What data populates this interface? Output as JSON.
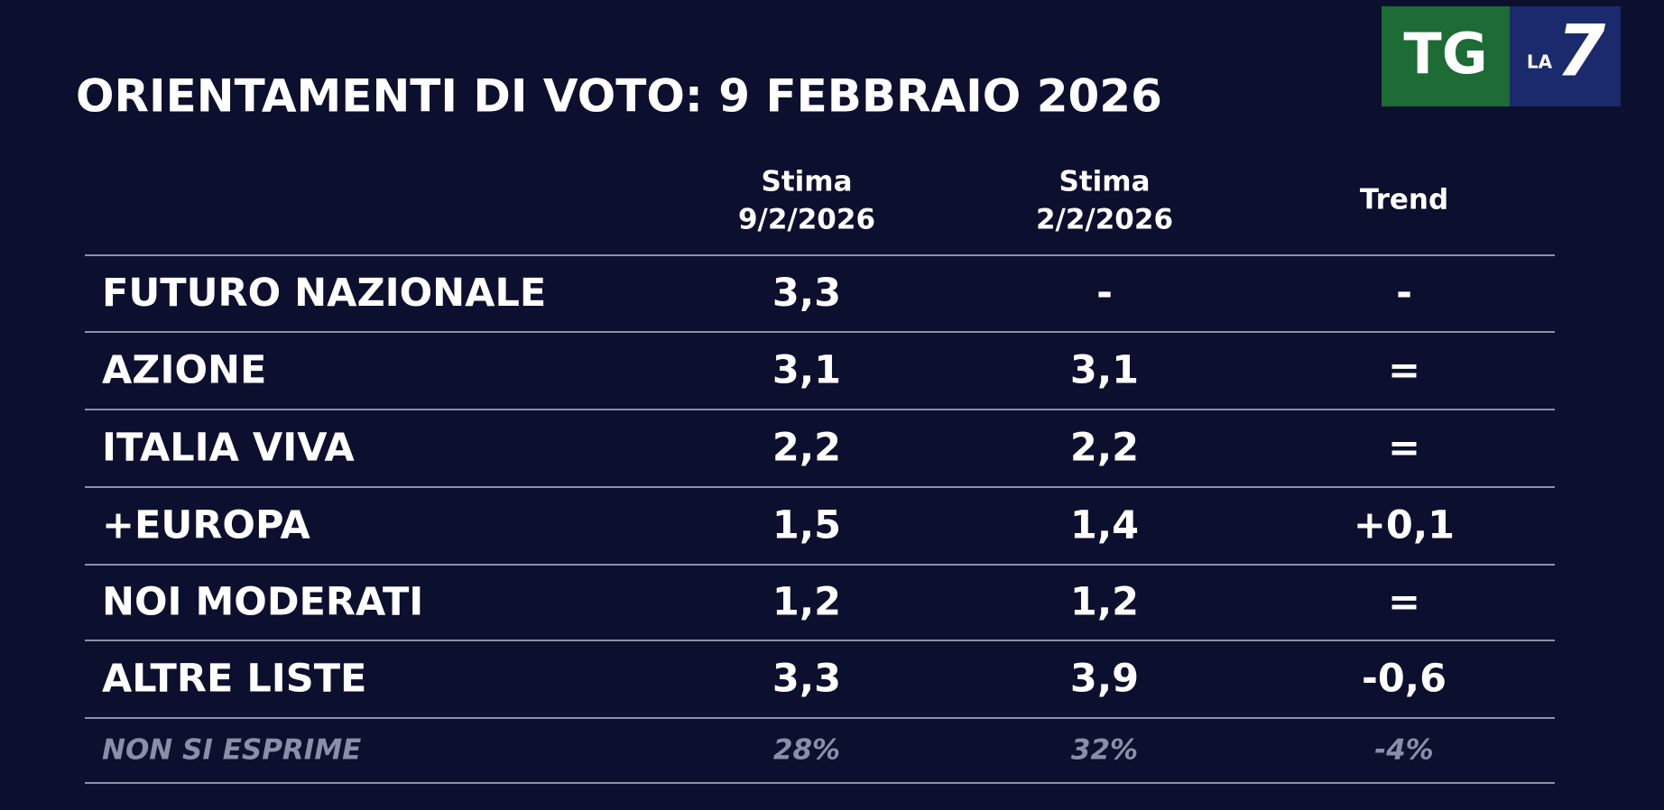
{
  "header": {
    "title": "ORIENTAMENTI DI VOTO: 9 FEBBRAIO 2026"
  },
  "logo": {
    "left": "TG",
    "small": "LA",
    "right": "7"
  },
  "table": {
    "columns": [
      [
        "Stima",
        "9/2/2026"
      ],
      [
        "Stima",
        "2/2/2026"
      ],
      [
        "Trend"
      ]
    ],
    "rows": [
      [
        "FUTURO NAZIONALE",
        "3,3",
        "-",
        "-"
      ],
      [
        "AZIONE",
        "3,1",
        "3,1",
        "="
      ],
      [
        "ITALIA VIVA",
        "2,2",
        "2,2",
        "="
      ],
      [
        "+EUROPA",
        "1,5",
        "1,4",
        "+0,1"
      ],
      [
        "NOI MODERATI",
        "1,2",
        "1,2",
        "="
      ],
      [
        "ALTRE LISTE",
        "3,3",
        "3,9",
        "-0,6"
      ]
    ],
    "footer_row": [
      "NON SI ESPRIME",
      "28%",
      "32%",
      "-4%"
    ]
  }
}
